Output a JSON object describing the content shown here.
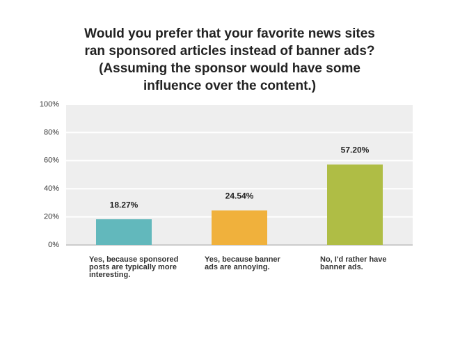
{
  "chart_data": {
    "type": "bar",
    "title": "Would you prefer that your favorite news sites ran sponsored articles instead of banner ads? (Assuming the sponsor would have some influence over the content.)",
    "categories": [
      "Yes, because sponsored posts are typically more interesting.",
      "Yes, because banner ads are annoying.",
      "No, I'd rather have banner ads."
    ],
    "values": [
      18.27,
      24.54,
      57.2
    ],
    "value_labels": [
      "18.27%",
      "24.54%",
      "57.20%"
    ],
    "colors": [
      "#62b8bc",
      "#f0b13c",
      "#afbd45"
    ],
    "ylim": [
      0,
      100
    ],
    "yticks": [
      {
        "value": 0,
        "label": "0%"
      },
      {
        "value": 20,
        "label": "20%"
      },
      {
        "value": 40,
        "label": "40%"
      },
      {
        "value": 60,
        "label": "60%"
      },
      {
        "value": 80,
        "label": "80%"
      },
      {
        "value": 100,
        "label": "100%"
      }
    ],
    "grid": true
  }
}
